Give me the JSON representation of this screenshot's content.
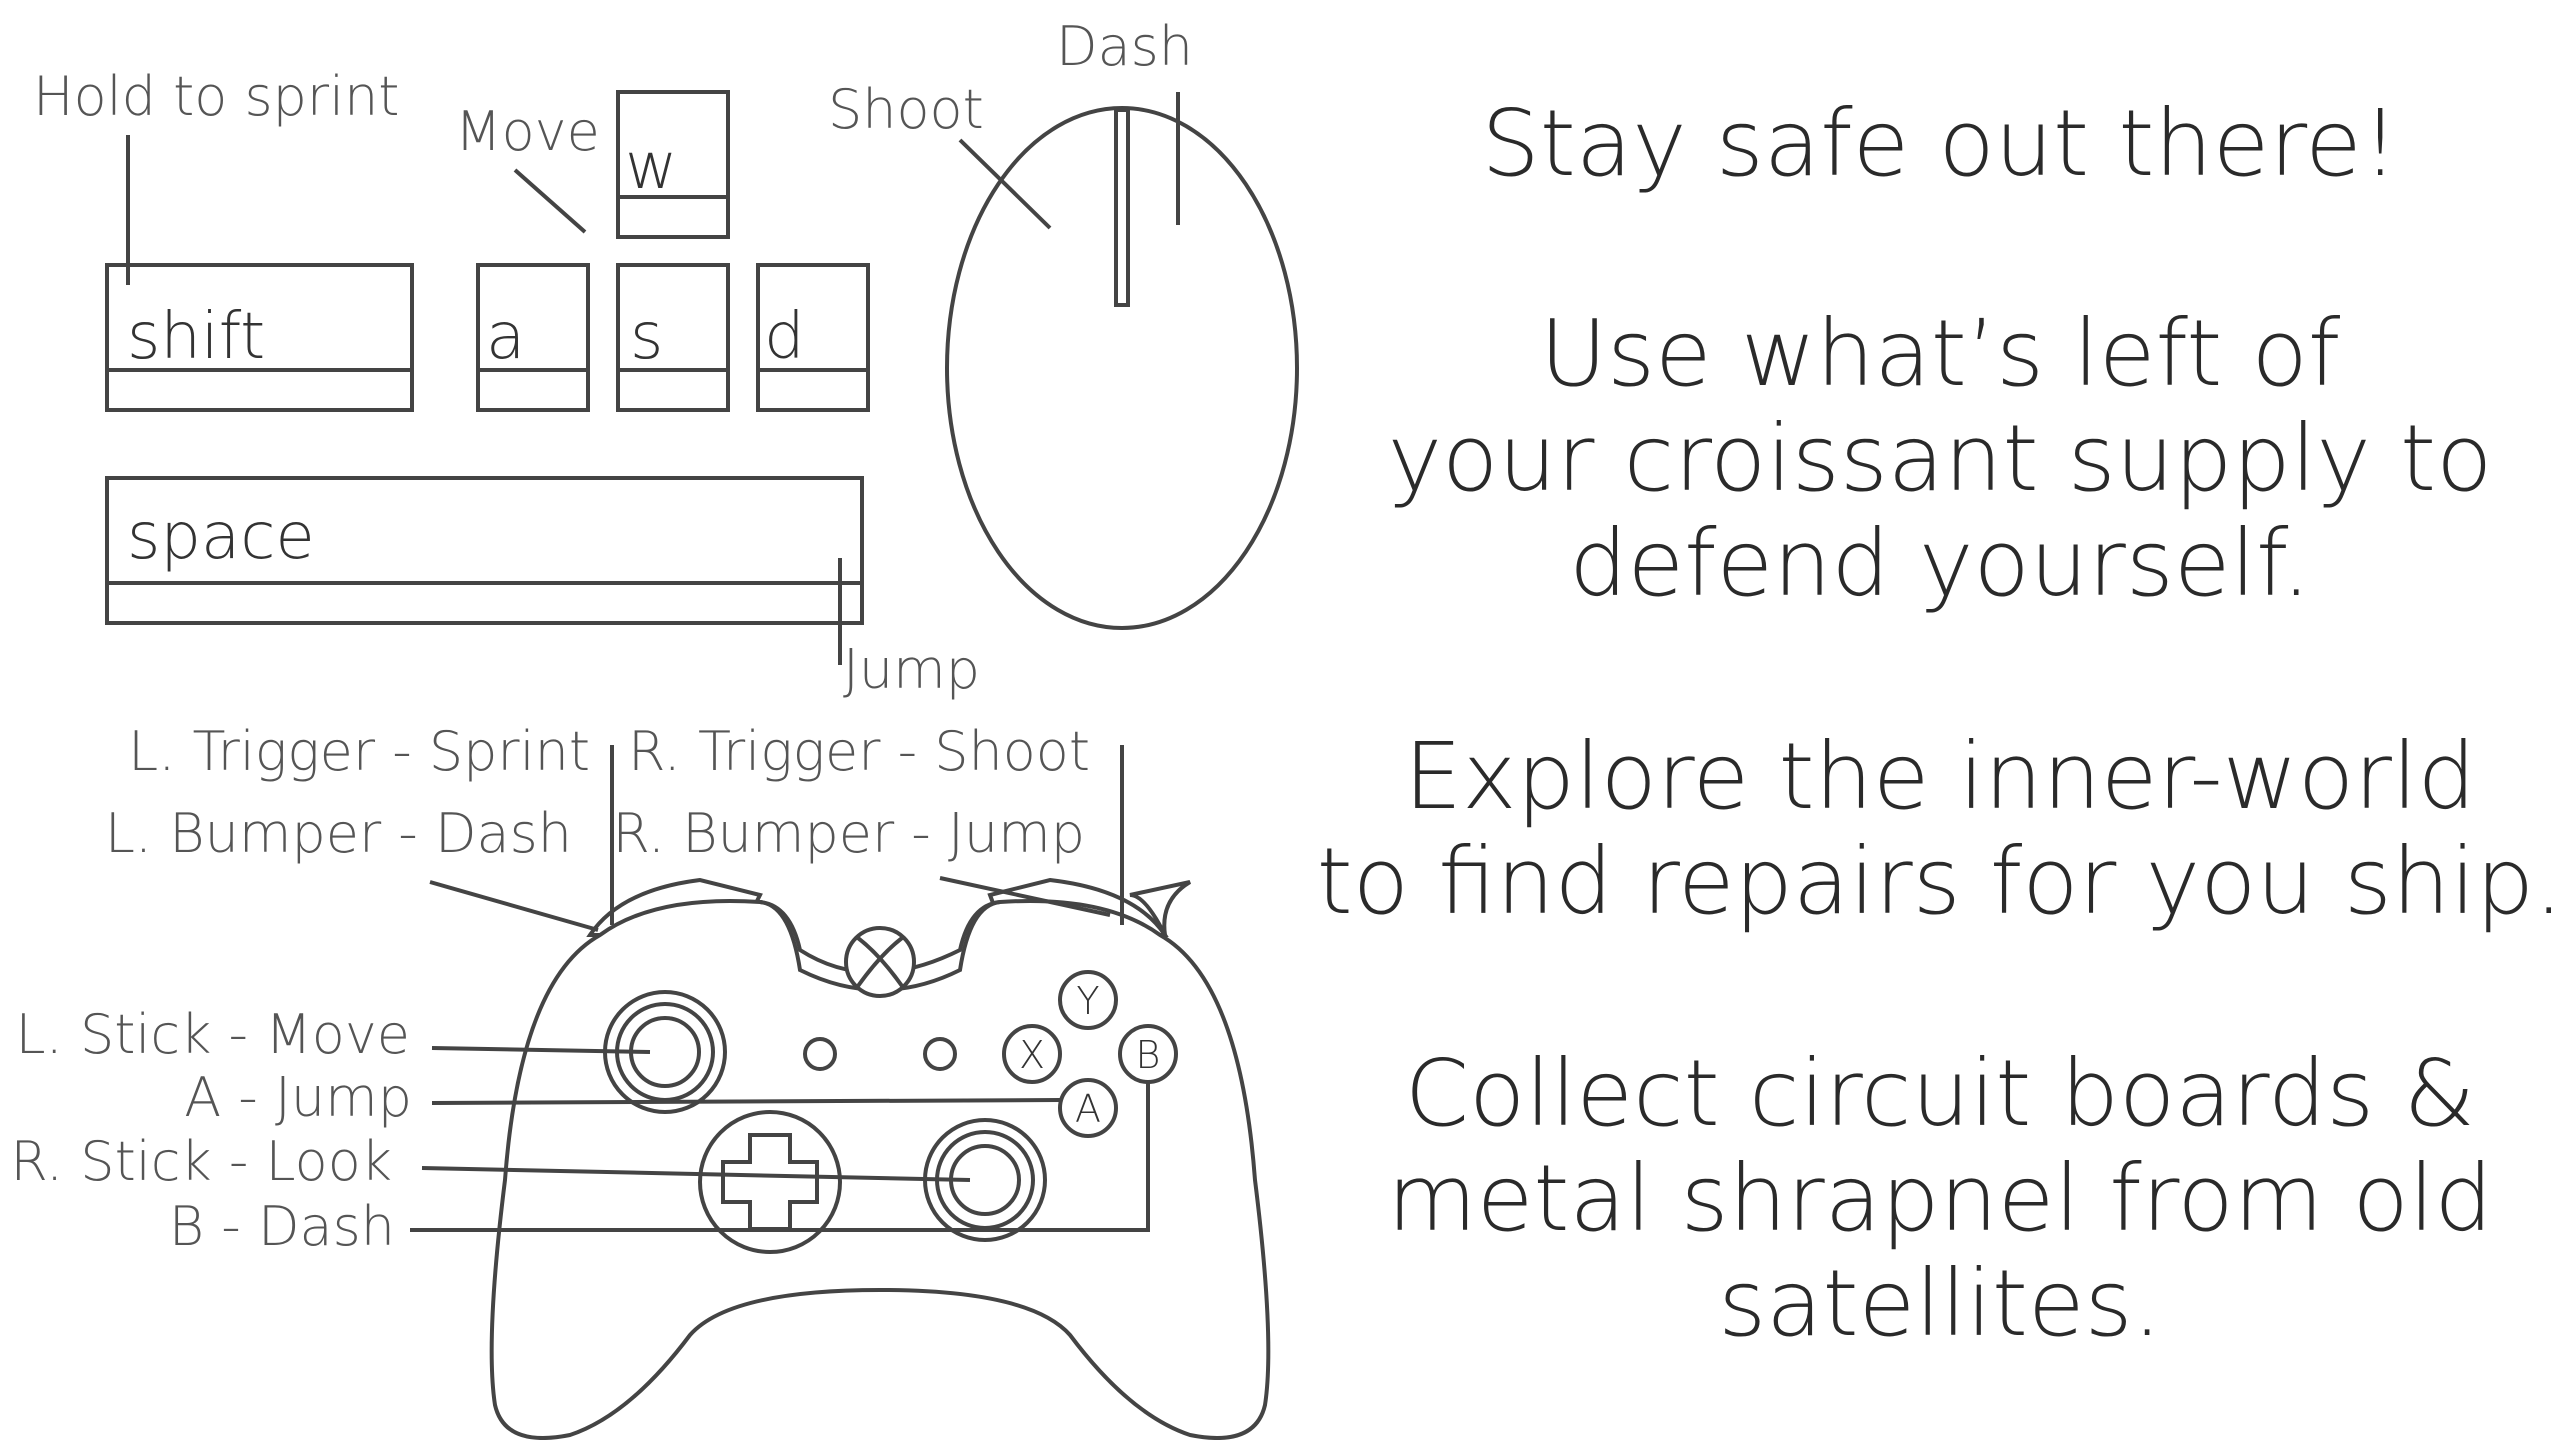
{
  "keyboard": {
    "keys": {
      "shift": "shift",
      "w": "w",
      "a": "a",
      "s": "s",
      "d": "d",
      "space": "space"
    },
    "labels": {
      "sprint": "Hold to sprint",
      "move": "Move",
      "jump": "Jump"
    }
  },
  "mouse": {
    "labels": {
      "shoot": "Shoot",
      "dash": "Dash"
    }
  },
  "controller": {
    "labels": {
      "l_trigger": "L. Trigger - Sprint",
      "r_trigger": "R. Trigger - Shoot",
      "l_bumper": "L. Bumper - Dash",
      "r_bumper": "R. Bumper - Jump",
      "l_stick": "L. Stick - Move",
      "a_btn": "A - Jump",
      "r_stick": "R. Stick - Look",
      "b_btn": "B - Dash"
    },
    "face_buttons": {
      "y": "Y",
      "x": "X",
      "b": "B",
      "a": "A"
    }
  },
  "message": {
    "line1": "Stay safe out there!",
    "line2": "Use what’s left of",
    "line3": "your croissant supply to",
    "line4": "defend yourself.",
    "line5": "Explore the inner-world",
    "line6": "to find repairs for you ship.",
    "line7": "Collect circuit boards &",
    "line8": "metal shrapnel from old",
    "line9": "satellites."
  }
}
